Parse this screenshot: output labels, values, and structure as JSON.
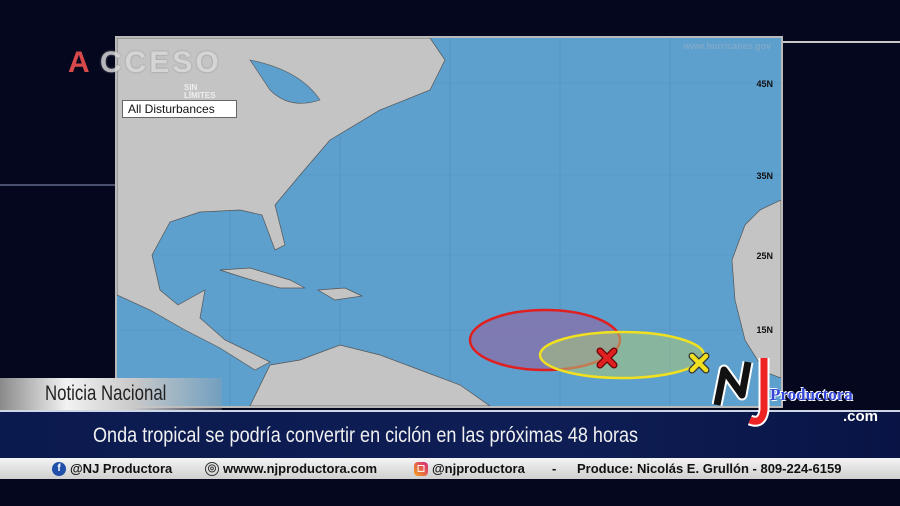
{
  "map": {
    "legend_label": "All Disturbances",
    "source": "www.hurricanes.gov",
    "latitudes": [
      "45N",
      "35N",
      "25N",
      "15N"
    ],
    "disturbances": [
      {
        "marker": "x",
        "color": "#e02020",
        "risk_area_color": "#e02020"
      },
      {
        "marker": "x",
        "color": "#f0e020",
        "risk_area_color": "#f0e020"
      }
    ],
    "ocean_color": "#5d9fcd",
    "land_color": "#c4c4c4"
  },
  "channel_logo": {
    "text": "ACCESO",
    "subtitle": "SIN LÍMITES"
  },
  "section_tag": "Noticia Nacional",
  "headline": "Onda tropical se podría convertir en ciclón en las próximas 48 horas",
  "footer": {
    "facebook": "@NJ Productora",
    "website": "wwww.njproductora.com",
    "instagram": "@njproductora",
    "separator": "-",
    "producer": "Produce: Nicolás E. Grullón - 809-224-6159"
  },
  "brand_logo": {
    "mark": "NJ",
    "name": "Productora",
    "suffix": ".com"
  }
}
